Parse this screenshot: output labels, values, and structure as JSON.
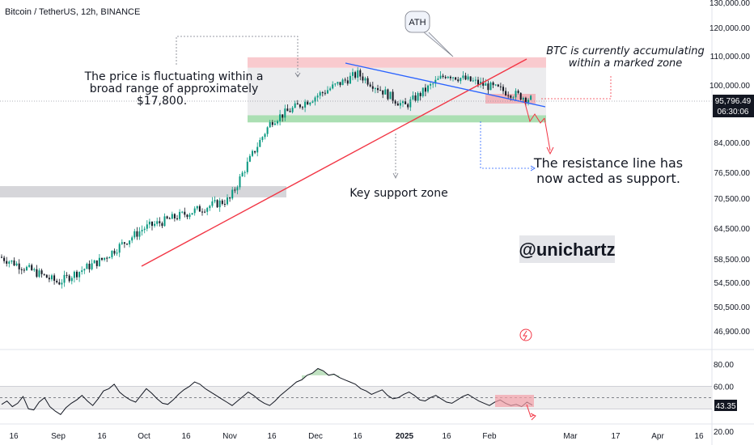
{
  "header": {
    "symbol_line": "Bitcoin / TetherUS, 12h, BINANCE"
  },
  "price_axis": {
    "ticks": [
      "130,000.00",
      "120,000.00",
      "110,000.00",
      "100,000.00",
      "84,000.00",
      "76,500.00",
      "70,500.00",
      "64,500.00",
      "58,500.00",
      "54,500.00",
      "50,500.00",
      "46,900.00"
    ],
    "current_price": "95,796.49",
    "countdown": "06:30:06"
  },
  "rsi_axis": {
    "ticks": [
      "80.00",
      "60.00",
      "20.00"
    ],
    "current_value": "43.35"
  },
  "time_axis": {
    "ticks": [
      "16",
      "Sep",
      "16",
      "Oct",
      "16",
      "Nov",
      "16",
      "Dec",
      "16",
      "2025",
      "16",
      "Feb",
      "Mar",
      "17",
      "Apr",
      "16"
    ]
  },
  "annotations": {
    "range_note": [
      "The price is fluctuating within a",
      "broad range of approximately",
      "$17,800."
    ],
    "ath": "ATH",
    "accumulation_note": [
      "BTC is currently accumulating",
      "within a marked zone"
    ],
    "support_zone": "Key support zone",
    "resistance_note": [
      "The resistance line has",
      "now acted as support."
    ],
    "watermark": "@unichartz"
  },
  "colors": {
    "up_candle": "#089981",
    "down_candle": "#131722",
    "trendline": "#f23645",
    "downtrend": "#2962ff",
    "resistance_zone": "#f7b8bd",
    "support_zone": "#8fd49a",
    "range_box": "#e9e9eb",
    "old_zone": "#d1d2d6",
    "rsi_line": "#131722",
    "rsi_band": "#eeeeef"
  },
  "chart_data": {
    "type": "candlestick",
    "timeframe": "12h",
    "y_scale": "log",
    "ylim": [
      45000,
      135000
    ],
    "anchors": [
      {
        "x": "16",
        "price": 59000
      },
      {
        "x": "Sep",
        "price": 54500
      },
      {
        "x": "16",
        "price": 58500
      },
      {
        "x": "Oct",
        "price": 64500
      },
      {
        "x": "16",
        "price": 67500
      },
      {
        "x": "Nov",
        "price": 70500
      },
      {
        "x": "16",
        "price": 90000
      },
      {
        "x": "Dec",
        "price": 97000
      },
      {
        "x": "16",
        "price": 104000
      },
      {
        "x": "2025",
        "price": 94000
      },
      {
        "x": "16",
        "price": 104000
      },
      {
        "x": "Feb",
        "price": 100000
      },
      {
        "x": "Feb",
        "price": 95796.49
      }
    ],
    "ath": 109000,
    "resistance_zone": [
      106000,
      109500
    ],
    "support_zone": [
      89500,
      91500
    ],
    "range_width": 17800,
    "rsi": {
      "ylim": [
        15,
        90
      ],
      "band": [
        40,
        60
      ],
      "current": 43.35,
      "values": [
        44,
        47,
        42,
        45,
        51,
        40,
        39,
        46,
        50,
        42,
        38,
        35,
        41,
        45,
        48,
        52,
        47,
        43,
        49,
        56,
        58,
        62,
        55,
        51,
        48,
        46,
        52,
        58,
        54,
        49,
        45,
        44,
        48,
        53,
        57,
        60,
        64,
        62,
        58,
        55,
        52,
        49,
        46,
        43,
        47,
        51,
        55,
        52,
        48,
        45,
        43,
        47,
        52,
        56,
        60,
        64,
        66,
        70,
        72,
        76,
        74,
        70,
        71,
        68,
        66,
        64,
        62,
        58,
        56,
        53,
        55,
        57,
        52,
        49,
        50,
        53,
        55,
        52,
        48,
        47,
        50,
        52,
        49,
        46,
        45,
        48,
        51,
        53,
        50,
        47,
        45,
        43,
        46,
        48,
        45,
        43,
        44,
        42,
        46,
        43.35
      ]
    }
  }
}
